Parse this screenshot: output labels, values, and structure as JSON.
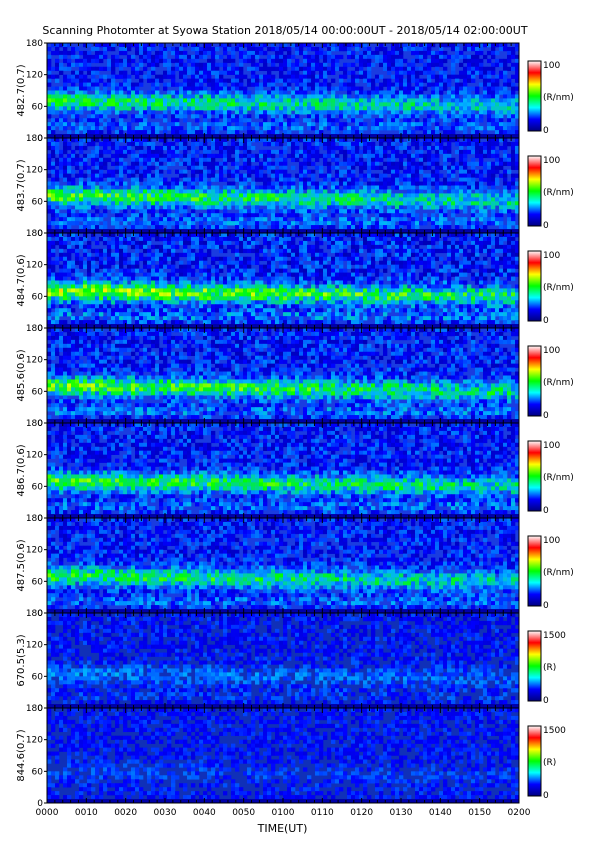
{
  "title": "Scanning Photomter at Syowa Station  2018/05/14 00:00:00UT - 2018/05/14 02:00:00UT",
  "chart_data": {
    "type": "heatmap",
    "xlabel": "TIME(UT)",
    "x_ticks": [
      "0000",
      "0010",
      "0020",
      "0030",
      "0040",
      "0050",
      "0100",
      "0110",
      "0120",
      "0130",
      "0140",
      "0150",
      "0200"
    ],
    "y_ticks": [
      "0",
      "60",
      "120",
      "180"
    ],
    "ylim": [
      0,
      180
    ],
    "colormap": [
      "#000080",
      "#0000ff",
      "#00ffff",
      "#00ff00",
      "#ffff00",
      "#ff0000",
      "#ffffff"
    ],
    "panels": [
      {
        "ylabel": "482.7(0.7)",
        "cbar_unit": "(R/nm)",
        "cbar_min": "0",
        "cbar_max": "100",
        "band_y": 70,
        "intensity": 0.6
      },
      {
        "ylabel": "483.7(0.7)",
        "cbar_unit": "(R/nm)",
        "cbar_min": "0",
        "cbar_max": "100",
        "band_y": 70,
        "intensity": 0.7
      },
      {
        "ylabel": "484.7(0.6)",
        "cbar_unit": "(R/nm)",
        "cbar_min": "0",
        "cbar_max": "100",
        "band_y": 70,
        "intensity": 0.85
      },
      {
        "ylabel": "485.6(0.6)",
        "cbar_unit": "(R/nm)",
        "cbar_min": "0",
        "cbar_max": "100",
        "band_y": 70,
        "intensity": 0.75
      },
      {
        "ylabel": "486.7(0.6)",
        "cbar_unit": "(R/nm)",
        "cbar_min": "0",
        "cbar_max": "100",
        "band_y": 70,
        "intensity": 0.7
      },
      {
        "ylabel": "487.5(0.6)",
        "cbar_unit": "(R/nm)",
        "cbar_min": "0",
        "cbar_max": "100",
        "band_y": 70,
        "intensity": 0.65
      },
      {
        "ylabel": "670.5(5.3)",
        "cbar_unit": "(R)",
        "cbar_min": "0",
        "cbar_max": "1500",
        "band_y": 65,
        "intensity": 0.25
      },
      {
        "ylabel": "844.6(0.7)",
        "cbar_unit": "(R)",
        "cbar_min": "0",
        "cbar_max": "1500",
        "band_y": 60,
        "intensity": 0.12
      }
    ]
  }
}
